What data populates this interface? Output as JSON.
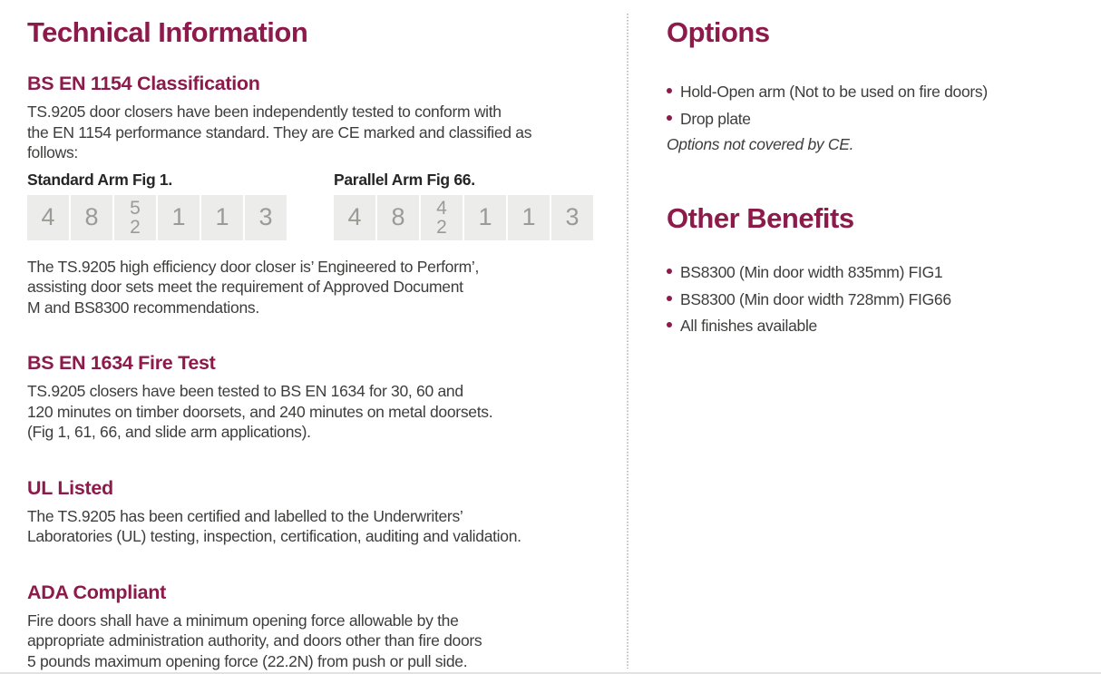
{
  "colors": {
    "accent": "#8C1A4B",
    "body_text": "#3D3D3C",
    "label_text": "#262626",
    "cell_background": "#ECECEB",
    "cell_number": "#9B9B96",
    "divider": "#C2C2BE"
  },
  "technical": {
    "title": "Technical Information",
    "classification": {
      "heading": "BS EN 1154 Classification",
      "intro_lines": [
        "TS.9205 door closers have been independently tested to conform with",
        "the EN 1154 performance standard. They are CE marked and classified as",
        "follows:"
      ],
      "standard": {
        "label": "Standard Arm Fig 1.",
        "cells": [
          "4",
          "8",
          [
            "5",
            "2"
          ],
          "1",
          "1",
          "3"
        ]
      },
      "parallel": {
        "label": "Parallel Arm Fig 66.",
        "cells": [
          "4",
          "8",
          [
            "4",
            "2"
          ],
          "1",
          "1",
          "3"
        ]
      },
      "outro_lines": [
        "The TS.9205 high efficiency door closer is’ Engineered to Perform’,",
        "assisting door sets meet the requirement of Approved Document",
        "M and BS8300 recommendations."
      ]
    },
    "fire_test": {
      "heading": "BS EN 1634 Fire Test",
      "lines": [
        "TS.9205 closers have been tested to BS EN 1634 for 30, 60 and",
        "120 minutes on timber doorsets, and 240 minutes on metal doorsets.",
        "(Fig 1, 61, 66, and slide arm applications)."
      ]
    },
    "ul_listed": {
      "heading": "UL Listed",
      "lines": [
        "The TS.9205 has been certified and labelled to the Underwriters’",
        "Laboratories (UL) testing, inspection, certification, auditing and validation."
      ]
    },
    "ada": {
      "heading": "ADA Compliant",
      "lines": [
        "Fire doors shall have a minimum opening force allowable by the",
        "appropriate administration authority, and doors other than fire doors",
        "5 pounds maximum opening force (22.2N) from push or pull side."
      ]
    }
  },
  "options": {
    "title": "Options",
    "items": [
      "Hold-Open arm (Not to be used on fire doors)",
      "Drop plate"
    ],
    "note": "Options not covered by CE."
  },
  "benefits": {
    "title": "Other Benefits",
    "items": [
      "BS8300 (Min door width 835mm) FIG1",
      "BS8300 (Min door width 728mm) FIG66",
      "All finishes available"
    ]
  }
}
